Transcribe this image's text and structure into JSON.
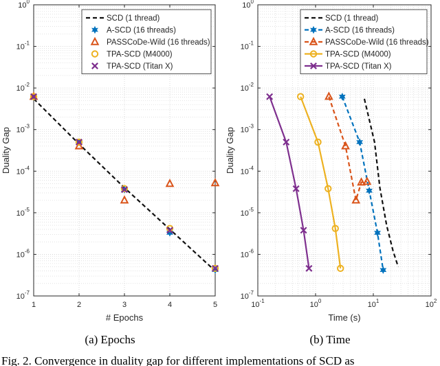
{
  "colors": {
    "scd": "#111111",
    "ascd": "#0072BD",
    "passcode": "#D95319",
    "m4000": "#EDB120",
    "titanx": "#7E2F8E",
    "grid": "#cfcfcf",
    "axis": "#262626"
  },
  "caption": "Fig. 2.  Convergence in duality gap for different implementations of SCD as",
  "chart_data": [
    {
      "type": "line",
      "subcaption": "(a) Epochs",
      "xlabel": "# Epochs",
      "ylabel": "Duality Gap",
      "xscale": "linear",
      "yscale": "log",
      "xlim": [
        1,
        5
      ],
      "ylim": [
        1e-07,
        1
      ],
      "xticks": [
        1,
        2,
        3,
        4,
        5
      ],
      "xticklabels": [
        "1",
        "2",
        "3",
        "4",
        "5"
      ],
      "yticks": [
        1e-07,
        1e-06,
        1e-05,
        0.0001,
        0.001,
        0.01,
        0.1,
        1
      ],
      "yticklabels": [
        [
          "10",
          "-7"
        ],
        [
          "10",
          "-6"
        ],
        [
          "10",
          "-5"
        ],
        [
          "10",
          "-4"
        ],
        [
          "10",
          "-3"
        ],
        [
          "10",
          "-2"
        ],
        [
          "10",
          "-1"
        ],
        [
          "10",
          "0"
        ]
      ],
      "grid": true,
      "legend_position": "top-right",
      "series": [
        {
          "name": "SCD (1 thread)",
          "key": "scd",
          "line": "dashed",
          "marker": "none",
          "x": [
            1,
            2,
            3,
            4,
            5
          ],
          "y": [
            0.0055,
            0.00045,
            4e-05,
            4e-06,
            4e-07
          ]
        },
        {
          "name": "A-SCD (16 threads)",
          "key": "ascd",
          "line": "none",
          "marker": "hexagram",
          "x": [
            1,
            2,
            3,
            4,
            5
          ],
          "y": [
            0.0062,
            0.0005,
            3.6e-05,
            3.3e-06,
            4.2e-07
          ]
        },
        {
          "name": "PASSCoDe-Wild (16 threads)",
          "key": "passcode",
          "line": "none",
          "marker": "triangle",
          "x": [
            1,
            2,
            3,
            4,
            5
          ],
          "y": [
            0.0062,
            0.0004,
            2e-05,
            5e-05,
            5.2e-05
          ]
        },
        {
          "name": "TPA-SCD (M4000)",
          "key": "m4000",
          "line": "none",
          "marker": "circle",
          "x": [
            1,
            2,
            3,
            4,
            5
          ],
          "y": [
            0.0062,
            0.0005,
            3.8e-05,
            4.2e-06,
            4.6e-07
          ]
        },
        {
          "name": "TPA-SCD (Titan X)",
          "key": "titanx",
          "line": "none",
          "marker": "x",
          "x": [
            1,
            2,
            3,
            4,
            5
          ],
          "y": [
            0.0062,
            0.0005,
            3.6e-05,
            3.8e-06,
            4.6e-07
          ]
        }
      ]
    },
    {
      "type": "line",
      "subcaption": "(b) Time",
      "xlabel": "Time (s)",
      "ylabel": "Duality Gap",
      "xscale": "log",
      "yscale": "log",
      "xlim": [
        0.1,
        100
      ],
      "ylim": [
        1e-07,
        1
      ],
      "xticks": [
        0.1,
        1,
        10,
        100
      ],
      "xticklabels": [
        [
          "10",
          "-1"
        ],
        [
          "10",
          "0"
        ],
        [
          "10",
          "1"
        ],
        [
          "10",
          "2"
        ]
      ],
      "yticks": [
        1e-07,
        1e-06,
        1e-05,
        0.0001,
        0.001,
        0.01,
        0.1,
        1
      ],
      "yticklabels": [
        [
          "10",
          "-7"
        ],
        [
          "10",
          "-6"
        ],
        [
          "10",
          "-5"
        ],
        [
          "10",
          "-4"
        ],
        [
          "10",
          "-3"
        ],
        [
          "10",
          "-2"
        ],
        [
          "10",
          "-1"
        ],
        [
          "10",
          "0"
        ]
      ],
      "grid": true,
      "legend_position": "top-right",
      "series": [
        {
          "name": "SCD (1 thread)",
          "key": "scd",
          "line": "dashed",
          "marker": "none",
          "x": [
            7,
            10.5,
            13,
            17,
            22,
            27
          ],
          "y": [
            0.0055,
            0.0005,
            4e-05,
            5e-06,
            1.2e-06,
            5e-07
          ]
        },
        {
          "name": "A-SCD (16 threads)",
          "key": "ascd",
          "line": "dashed",
          "marker": "hexagram",
          "x": [
            2.9,
            5.8,
            8.5,
            11.8,
            14.8
          ],
          "y": [
            0.0062,
            0.0005,
            3.4e-05,
            3.3e-06,
            4.2e-07
          ]
        },
        {
          "name": "PASSCoDe-Wild (16 threads)",
          "key": "passcode",
          "line": "dashed",
          "marker": "triangle",
          "x": [
            1.7,
            3.3,
            5.0,
            6.2,
            7.8
          ],
          "y": [
            0.0062,
            0.0004,
            2e-05,
            5.4e-05,
            5.6e-05
          ]
        },
        {
          "name": "TPA-SCD (M4000)",
          "key": "m4000",
          "line": "solid",
          "marker": "circle",
          "x": [
            0.55,
            1.1,
            1.65,
            2.2,
            2.7
          ],
          "y": [
            0.0062,
            0.0005,
            3.8e-05,
            4.2e-06,
            4.6e-07
          ]
        },
        {
          "name": "TPA-SCD (Titan X)",
          "key": "titanx",
          "line": "solid",
          "marker": "x",
          "x": [
            0.16,
            0.31,
            0.46,
            0.62,
            0.77
          ],
          "y": [
            0.0062,
            0.0005,
            3.8e-05,
            3.8e-06,
            4.6e-07
          ]
        }
      ]
    }
  ]
}
